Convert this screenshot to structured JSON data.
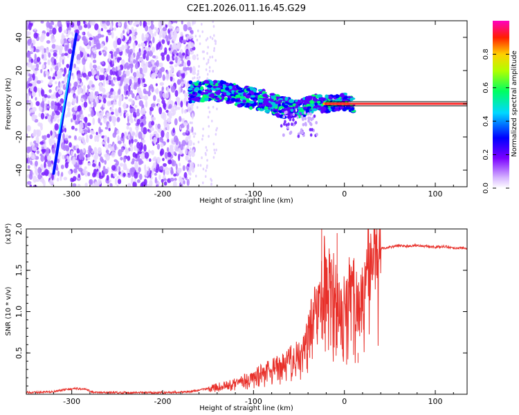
{
  "title": "C2E1.2026.011.16.45.G29",
  "chart_data": [
    {
      "type": "heatmap",
      "xlabel": "Height of straight line (km)",
      "ylabel": "Frequency (Hz)",
      "xlim": [
        -350,
        135
      ],
      "ylim": [
        -50,
        50
      ],
      "xticks": [
        -300,
        -200,
        -100,
        0,
        100
      ],
      "yticks": [
        -40,
        -20,
        0,
        20,
        40
      ],
      "colorbar": {
        "label": "Normalized spectral amplitude",
        "range": [
          0,
          1
        ],
        "ticks": [
          "0.0",
          "0.2",
          "0.4",
          "0.6",
          "0.8"
        ]
      },
      "features": {
        "noise_region_x": [
          -350,
          -165
        ],
        "diagonal_line": [
          [
            -320,
            -42
          ],
          [
            -295,
            42
          ]
        ],
        "ridge_points": [
          [
            -170,
            7
          ],
          [
            -150,
            8
          ],
          [
            -130,
            7
          ],
          [
            -110,
            4
          ],
          [
            -90,
            2
          ],
          [
            -70,
            -2
          ],
          [
            -50,
            -3
          ],
          [
            -35,
            0
          ],
          [
            -20,
            0
          ],
          [
            0,
            1
          ],
          [
            10,
            0
          ]
        ],
        "flat_line": {
          "x": [
            -20,
            135
          ],
          "y": 0
        }
      },
      "colors": {
        "noise": "#8a2be2",
        "ridge_low": "#0000ff",
        "ridge_mid": "#00c8c8",
        "ridge_high": "#00ff66",
        "peak": "#ff2020",
        "line": "#ff3030"
      }
    },
    {
      "type": "line",
      "xlabel": "Height of straight line (km)",
      "ylabel": "SNR (10 * v/v)",
      "scale_label": "(x10⁴)",
      "xlim": [
        -350,
        135
      ],
      "ylim": [
        0,
        2.0
      ],
      "xticks": [
        -300,
        -200,
        -100,
        0,
        100
      ],
      "yticks": [
        "0.5",
        "1.0",
        "1.5",
        "2.0"
      ],
      "ytick_values": [
        0.5,
        1.0,
        1.5,
        2.0
      ],
      "series": [
        {
          "color": "#e8302a",
          "x": [
            -350,
            -320,
            -305,
            -295,
            -285,
            -275,
            -250,
            -200,
            -170,
            -150,
            -130,
            -110,
            -100,
            -90,
            -80,
            -70,
            -60,
            -50,
            -45,
            -40,
            -35,
            -30,
            -25,
            -20,
            -15,
            -10,
            -5,
            0,
            5,
            10,
            15,
            20,
            25,
            30,
            35,
            40,
            50,
            60,
            70,
            80,
            90,
            100,
            110,
            120,
            135
          ],
          "y": [
            0.02,
            0.03,
            0.06,
            0.07,
            0.06,
            0.02,
            0.02,
            0.02,
            0.03,
            0.07,
            0.12,
            0.18,
            0.22,
            0.28,
            0.32,
            0.38,
            0.45,
            0.55,
            0.62,
            0.75,
            0.9,
            1.1,
            1.35,
            1.55,
            1.4,
            1.2,
            1.0,
            1.1,
            1.25,
            1.4,
            1.0,
            1.5,
            1.62,
            1.68,
            1.72,
            1.76,
            1.78,
            1.8,
            1.79,
            1.8,
            1.79,
            1.78,
            1.79,
            1.77,
            1.77
          ]
        }
      ]
    }
  ]
}
